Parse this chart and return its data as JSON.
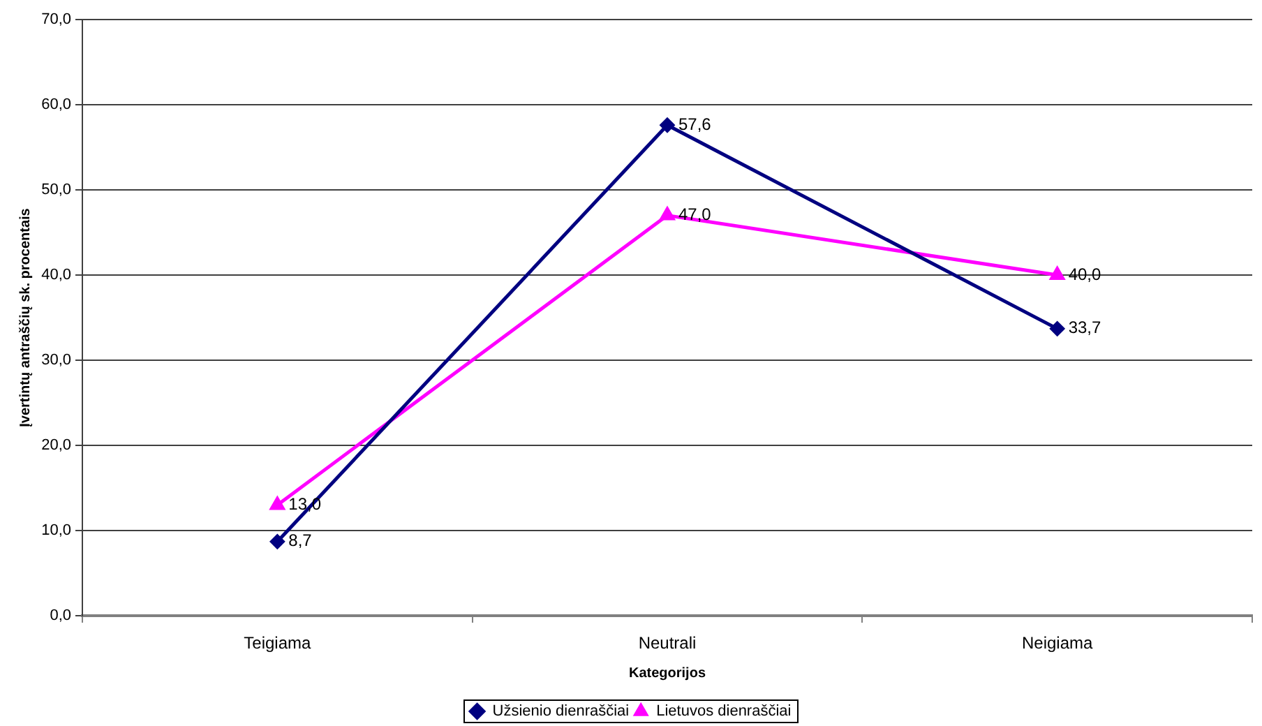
{
  "chart_data": {
    "type": "line",
    "categories": [
      "Teigiama",
      "Neutrali",
      "Neigiama"
    ],
    "series": [
      {
        "name": "Užsienio dienraščiai",
        "color": "#000080",
        "marker": "diamond",
        "values": [
          8.7,
          57.6,
          33.7
        ],
        "value_labels": [
          "8,7",
          "57,6",
          "33,7"
        ]
      },
      {
        "name": "Lietuvos dienraščiai",
        "color": "#ff00ff",
        "marker": "triangle",
        "values": [
          13.0,
          47.0,
          40.0
        ],
        "value_labels": [
          "13,0",
          "47,0",
          "40,0"
        ]
      }
    ],
    "xlabel": "Kategorijos",
    "ylabel": "Įvertintų antraščių sk. procentais",
    "ylim": [
      0,
      70
    ],
    "yticks": [
      {
        "value": 0,
        "label": "0,0"
      },
      {
        "value": 10,
        "label": "10,0"
      },
      {
        "value": 20,
        "label": "20,0"
      },
      {
        "value": 30,
        "label": "30,0"
      },
      {
        "value": 40,
        "label": "40,0"
      },
      {
        "value": 50,
        "label": "50,0"
      },
      {
        "value": 60,
        "label": "60,0"
      },
      {
        "value": 70,
        "label": "70,0"
      }
    ],
    "grid": "y",
    "legend": "bottom",
    "line_style": "solid"
  }
}
